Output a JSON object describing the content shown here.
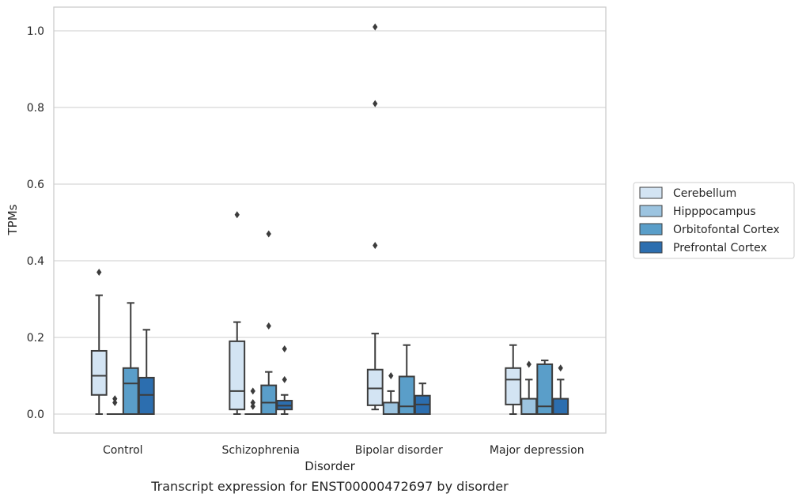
{
  "caption": "Transcript expression for ENST00000472697 by disorder",
  "chart_data": {
    "type": "box",
    "xlabel": "Disorder",
    "ylabel": "TPMs",
    "ylim": [
      -0.05,
      1.06
    ],
    "yticks": [
      "0.0",
      "0.2",
      "0.4",
      "0.6",
      "0.8",
      "1.0"
    ],
    "grid": "horizontal",
    "legend_position": "right",
    "categories": [
      "Control",
      "Schizophrenia",
      "Bipolar disorder",
      "Major depression"
    ],
    "series": [
      {
        "name": "Cerebellum",
        "color": "#d3e4f3",
        "boxes": [
          {
            "min": 0.0,
            "q1": 0.05,
            "median": 0.1,
            "q3": 0.165,
            "max": 0.31,
            "outliers": [
              0.37
            ]
          },
          {
            "min": 0.0,
            "q1": 0.012,
            "median": 0.06,
            "q3": 0.19,
            "max": 0.24,
            "outliers": [
              0.52
            ]
          },
          {
            "min": 0.012,
            "q1": 0.023,
            "median": 0.067,
            "q3": 0.116,
            "max": 0.21,
            "outliers": [
              0.44,
              0.81,
              1.01
            ]
          },
          {
            "min": 0.0,
            "q1": 0.025,
            "median": 0.09,
            "q3": 0.12,
            "max": 0.18,
            "outliers": []
          }
        ]
      },
      {
        "name": "Hipppocampus",
        "color": "#9cc4e0",
        "boxes": [
          {
            "min": 0.0,
            "q1": 0.0,
            "median": 0.0,
            "q3": 0.0,
            "max": 0.0,
            "outliers": [
              0.03,
              0.04
            ]
          },
          {
            "min": 0.0,
            "q1": 0.0,
            "median": 0.0,
            "q3": 0.0,
            "max": 0.0,
            "outliers": [
              0.02,
              0.03,
              0.06
            ]
          },
          {
            "min": 0.0,
            "q1": 0.0,
            "median": 0.0,
            "q3": 0.03,
            "max": 0.06,
            "outliers": [
              0.1
            ]
          },
          {
            "min": 0.0,
            "q1": 0.0,
            "median": 0.0,
            "q3": 0.04,
            "max": 0.09,
            "outliers": [
              0.13
            ]
          }
        ]
      },
      {
        "name": "Orbitofontal Cortex",
        "color": "#5a9ec9",
        "boxes": [
          {
            "min": 0.0,
            "q1": 0.0,
            "median": 0.08,
            "q3": 0.12,
            "max": 0.29,
            "outliers": []
          },
          {
            "min": 0.0,
            "q1": 0.0,
            "median": 0.03,
            "q3": 0.075,
            "max": 0.11,
            "outliers": [
              0.23,
              0.47
            ]
          },
          {
            "min": 0.0,
            "q1": 0.0,
            "median": 0.02,
            "q3": 0.098,
            "max": 0.18,
            "outliers": []
          },
          {
            "min": 0.0,
            "q1": 0.0,
            "median": 0.02,
            "q3": 0.13,
            "max": 0.14,
            "outliers": []
          }
        ]
      },
      {
        "name": "Prefrontal Cortex",
        "color": "#2c6eaf",
        "boxes": [
          {
            "min": 0.0,
            "q1": 0.0,
            "median": 0.05,
            "q3": 0.095,
            "max": 0.22,
            "outliers": []
          },
          {
            "min": 0.0,
            "q1": 0.012,
            "median": 0.022,
            "q3": 0.035,
            "max": 0.05,
            "outliers": [
              0.09,
              0.17
            ]
          },
          {
            "min": 0.0,
            "q1": 0.0,
            "median": 0.025,
            "q3": 0.048,
            "max": 0.08,
            "outliers": []
          },
          {
            "min": 0.0,
            "q1": 0.0,
            "median": 0.0,
            "q3": 0.04,
            "max": 0.09,
            "outliers": [
              0.12
            ]
          }
        ]
      }
    ]
  }
}
